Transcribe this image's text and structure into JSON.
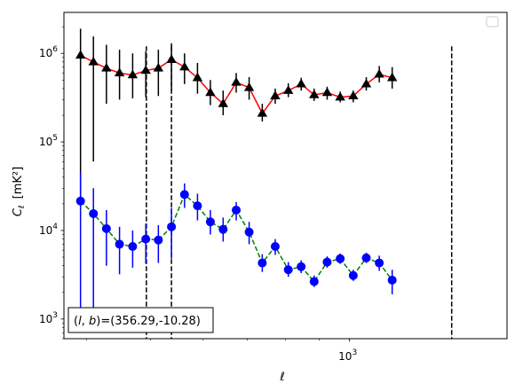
{
  "chart_data": {
    "type": "line",
    "xscale": "log",
    "yscale": "log",
    "xlim": [
      370,
      1730
    ],
    "ylim": [
      600,
      2900000
    ],
    "xlabel": "ℓ",
    "ylabel_main": "C",
    "ylabel_sub": "ℓ",
    "ylabel_units": "[mK²]",
    "x_tick_labels": [
      {
        "value": 1000,
        "base": "10",
        "exp": "3"
      }
    ],
    "y_tick_labels": [
      {
        "value": 1000,
        "base": "10",
        "exp": "3"
      },
      {
        "value": 10000,
        "base": "10",
        "exp": "4"
      },
      {
        "value": 100000,
        "base": "10",
        "exp": "5"
      },
      {
        "value": 1000000,
        "base": "10",
        "exp": "6"
      }
    ],
    "annotation": "(l, b)=(356.29,-10.28)",
    "annotation_parts": {
      "l": "l",
      "b": "b",
      "values": "=(356.29,-10.28)"
    },
    "legend": "top-right",
    "vlines": [
      {
        "x": 493,
        "ymin": 600,
        "ymax": 1200000
      },
      {
        "x": 538,
        "ymin": 600,
        "ymax": 1200000
      },
      {
        "x": 1427,
        "ymin": 600,
        "ymax": 1200000
      }
    ],
    "series": [
      {
        "marker": "triangle",
        "marker_color": "#000000",
        "line_color": "#ff0000",
        "line_style": "solid",
        "error_color": "#000000",
        "points": [
          {
            "x": 392,
            "y": 950000,
            "lo": 20000,
            "hi": 1900000
          },
          {
            "x": 410,
            "y": 800000,
            "lo": 60000,
            "hi": 1550000
          },
          {
            "x": 429,
            "y": 680000,
            "lo": 270000,
            "hi": 1250000
          },
          {
            "x": 449,
            "y": 600000,
            "lo": 300000,
            "hi": 1100000
          },
          {
            "x": 470,
            "y": 570000,
            "lo": 310000,
            "hi": 1000000
          },
          {
            "x": 492,
            "y": 640000,
            "lo": 320000,
            "hi": 1050000
          },
          {
            "x": 514,
            "y": 680000,
            "lo": 330000,
            "hi": 1100000
          },
          {
            "x": 538,
            "y": 850000,
            "lo": 380000,
            "hi": 1300000
          },
          {
            "x": 563,
            "y": 700000,
            "lo": 450000,
            "hi": 1000000
          },
          {
            "x": 589,
            "y": 530000,
            "lo": 350000,
            "hi": 780000
          },
          {
            "x": 616,
            "y": 360000,
            "lo": 260000,
            "hi": 500000
          },
          {
            "x": 644,
            "y": 270000,
            "lo": 200000,
            "hi": 380000
          },
          {
            "x": 674,
            "y": 470000,
            "lo": 360000,
            "hi": 600000
          },
          {
            "x": 705,
            "y": 410000,
            "lo": 300000,
            "hi": 540000
          },
          {
            "x": 738,
            "y": 210000,
            "lo": 170000,
            "hi": 270000
          },
          {
            "x": 772,
            "y": 330000,
            "lo": 270000,
            "hi": 400000
          },
          {
            "x": 808,
            "y": 380000,
            "lo": 320000,
            "hi": 460000
          },
          {
            "x": 845,
            "y": 450000,
            "lo": 380000,
            "hi": 530000
          },
          {
            "x": 884,
            "y": 340000,
            "lo": 290000,
            "hi": 400000
          },
          {
            "x": 925,
            "y": 360000,
            "lo": 300000,
            "hi": 420000
          },
          {
            "x": 968,
            "y": 320000,
            "lo": 280000,
            "hi": 370000
          },
          {
            "x": 1013,
            "y": 330000,
            "lo": 280000,
            "hi": 380000
          },
          {
            "x": 1060,
            "y": 450000,
            "lo": 380000,
            "hi": 540000
          },
          {
            "x": 1109,
            "y": 580000,
            "lo": 470000,
            "hi": 720000
          },
          {
            "x": 1160,
            "y": 530000,
            "lo": 400000,
            "hi": 700000
          }
        ]
      },
      {
        "marker": "circle",
        "marker_color": "#0000ff",
        "line_color": "#008000",
        "line_style": "dashed",
        "error_color": "#0000ff",
        "points": [
          {
            "x": 392,
            "y": 21500,
            "lo": 700,
            "hi": 45000
          },
          {
            "x": 410,
            "y": 15500,
            "lo": 700,
            "hi": 30000
          },
          {
            "x": 429,
            "y": 10500,
            "lo": 4000,
            "hi": 17000
          },
          {
            "x": 449,
            "y": 7000,
            "lo": 3200,
            "hi": 11000
          },
          {
            "x": 470,
            "y": 6600,
            "lo": 3800,
            "hi": 10000
          },
          {
            "x": 492,
            "y": 8000,
            "lo": 4200,
            "hi": 12000
          },
          {
            "x": 514,
            "y": 7800,
            "lo": 4300,
            "hi": 11500
          },
          {
            "x": 538,
            "y": 11000,
            "lo": 4800,
            "hi": 18000
          },
          {
            "x": 563,
            "y": 25500,
            "lo": 18000,
            "hi": 34000
          },
          {
            "x": 589,
            "y": 19000,
            "lo": 13000,
            "hi": 26000
          },
          {
            "x": 616,
            "y": 12500,
            "lo": 9000,
            "hi": 17000
          },
          {
            "x": 644,
            "y": 10300,
            "lo": 7500,
            "hi": 14000
          },
          {
            "x": 674,
            "y": 17000,
            "lo": 13000,
            "hi": 21000
          },
          {
            "x": 705,
            "y": 9600,
            "lo": 7000,
            "hi": 12500
          },
          {
            "x": 738,
            "y": 4300,
            "lo": 3400,
            "hi": 5400
          },
          {
            "x": 772,
            "y": 6600,
            "lo": 5300,
            "hi": 8000
          },
          {
            "x": 808,
            "y": 3600,
            "lo": 3000,
            "hi": 4400
          },
          {
            "x": 845,
            "y": 3900,
            "lo": 3300,
            "hi": 4600
          },
          {
            "x": 884,
            "y": 2650,
            "lo": 2300,
            "hi": 3100
          },
          {
            "x": 925,
            "y": 4400,
            "lo": 3800,
            "hi": 5100
          },
          {
            "x": 968,
            "y": 4800,
            "lo": 4200,
            "hi": 5500
          },
          {
            "x": 1013,
            "y": 3100,
            "lo": 2700,
            "hi": 3600
          },
          {
            "x": 1060,
            "y": 4900,
            "lo": 4300,
            "hi": 5600
          },
          {
            "x": 1109,
            "y": 4300,
            "lo": 3500,
            "hi": 5200
          },
          {
            "x": 1160,
            "y": 2750,
            "lo": 1900,
            "hi": 3600
          }
        ]
      }
    ]
  }
}
